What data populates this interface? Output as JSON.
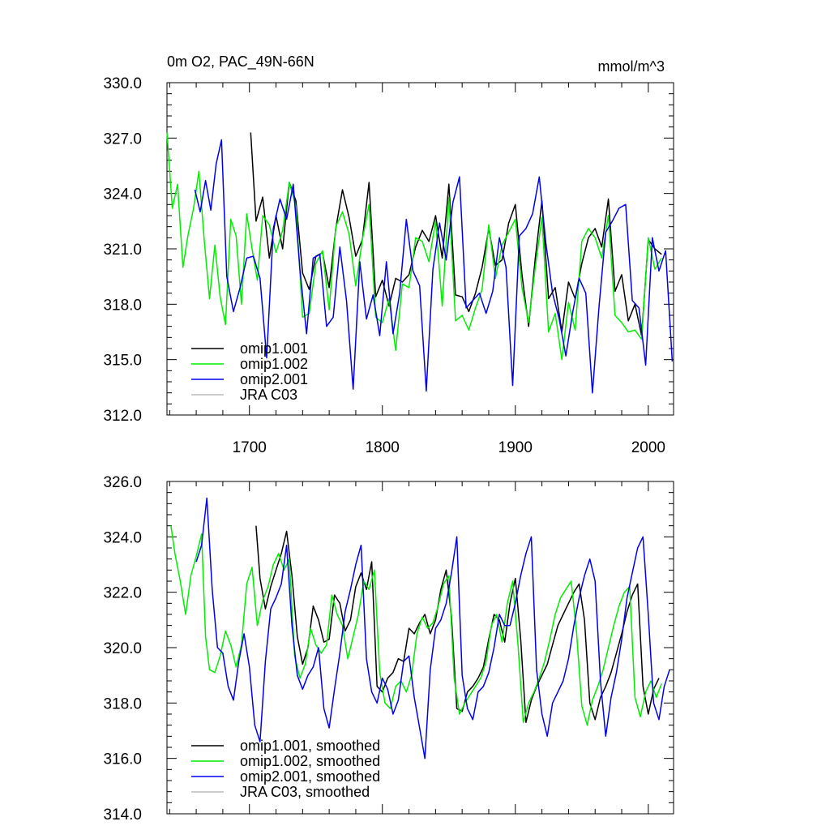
{
  "colors": {
    "omip1_001": "#000000",
    "omip1_002": "#00ee00",
    "omip2_001": "#0000ee",
    "jra_c03": "#bbbbbb"
  },
  "chart_data": [
    {
      "type": "line",
      "title": "0m O2, PAC_49N-66N",
      "units": "mmol/m^3",
      "xlim": [
        1638,
        2019
      ],
      "ylim": [
        312,
        330
      ],
      "x_ticks": [
        "1700",
        "1800",
        "1900",
        "2000"
      ],
      "y_ticks": [
        "312.0",
        "315.0",
        "318.0",
        "321.0",
        "324.0",
        "327.0",
        "330.0"
      ],
      "legend_position": "bottom-left",
      "legend": [
        "omip1.001",
        "omip1.002",
        "omip2.001",
        "JRA C03"
      ],
      "series": [
        {
          "name": "omip1.001",
          "color_key": "omip1_001",
          "x": [
            1701,
            1705,
            1710,
            1715,
            1720,
            1725,
            1730,
            1735,
            1740,
            1745,
            1750,
            1755,
            1760,
            1765,
            1770,
            1775,
            1780,
            1785,
            1790,
            1795,
            1800,
            1805,
            1810,
            1815,
            1820,
            1825,
            1830,
            1835,
            1840,
            1845,
            1850,
            1855,
            1860,
            1865,
            1870,
            1875,
            1880,
            1885,
            1890,
            1895,
            1900,
            1905,
            1910,
            1915,
            1920,
            1925,
            1930,
            1935,
            1940,
            1945,
            1950,
            1955,
            1960,
            1965,
            1970,
            1975,
            1980,
            1985,
            1990,
            1995,
            2000,
            2005,
            2010
          ],
          "y": [
            327.3,
            322.5,
            323.8,
            320.5,
            322.8,
            321.0,
            324.6,
            323.6,
            319.7,
            318.8,
            320.6,
            320.8,
            318.9,
            322.1,
            324.2,
            322.7,
            320.6,
            321.5,
            324.6,
            318.4,
            319.3,
            317.9,
            319.4,
            319.2,
            319.6,
            321.1,
            322.0,
            321.4,
            322.8,
            320.5,
            324.5,
            318.5,
            318.4,
            317.6,
            318.6,
            320.0,
            322.1,
            320.1,
            320.4,
            322.4,
            323.4,
            319.6,
            316.8,
            320.5,
            323.6,
            318.3,
            318.9,
            316.5,
            319.2,
            318.3,
            320.2,
            321.6,
            322.1,
            321.1,
            323.7,
            318.7,
            319.6,
            317.1,
            318.0,
            316.3,
            321.5,
            321.0,
            320.7
          ]
        },
        {
          "name": "omip1.002",
          "color_key": "omip1_002",
          "x": [
            1638,
            1642,
            1646,
            1650,
            1654,
            1658,
            1662,
            1666,
            1670,
            1674,
            1678,
            1682,
            1686,
            1690,
            1694,
            1698,
            1702,
            1706,
            1710,
            1715,
            1720,
            1725,
            1730,
            1735,
            1740,
            1745,
            1750,
            1755,
            1760,
            1765,
            1770,
            1775,
            1780,
            1785,
            1790,
            1795,
            1800,
            1805,
            1810,
            1815,
            1820,
            1825,
            1830,
            1835,
            1840,
            1845,
            1850,
            1855,
            1860,
            1865,
            1870,
            1875,
            1880,
            1885,
            1890,
            1895,
            1900,
            1905,
            1910,
            1915,
            1920,
            1925,
            1930,
            1935,
            1940,
            1945,
            1950,
            1955,
            1960,
            1965,
            1970,
            1975,
            1980,
            1985,
            1990,
            1995,
            2000,
            2005,
            2010
          ],
          "y": [
            327.3,
            323.2,
            324.5,
            320.0,
            321.8,
            323.2,
            325.2,
            321.5,
            318.3,
            321.2,
            318.4,
            316.9,
            322.6,
            321.7,
            318.0,
            322.9,
            321.0,
            319.3,
            322.8,
            322.3,
            320.8,
            322.0,
            324.6,
            323.3,
            317.3,
            317.5,
            320.2,
            320.9,
            317.7,
            322.2,
            323.0,
            321.8,
            319.0,
            321.5,
            323.4,
            317.3,
            317.0,
            318.3,
            315.5,
            319.1,
            318.9,
            321.6,
            321.4,
            320.3,
            322.5,
            317.9,
            323.8,
            317.1,
            317.4,
            316.6,
            317.8,
            318.8,
            322.3,
            319.4,
            321.2,
            321.9,
            322.6,
            318.9,
            317.0,
            320.0,
            322.7,
            316.5,
            317.5,
            315.0,
            318.1,
            316.6,
            321.4,
            322.1,
            321.6,
            320.5,
            322.8,
            317.4,
            317.0,
            316.5,
            316.6,
            316.1,
            321.6,
            319.9,
            320.5
          ]
        },
        {
          "name": "omip2.001",
          "color_key": "omip2_001",
          "x": [
            1659,
            1663,
            1667,
            1671,
            1675,
            1679,
            1683,
            1688,
            1693,
            1698,
            1703,
            1708,
            1713,
            1718,
            1723,
            1728,
            1733,
            1738,
            1743,
            1748,
            1753,
            1758,
            1763,
            1768,
            1773,
            1778,
            1783,
            1788,
            1793,
            1798,
            1803,
            1808,
            1813,
            1818,
            1823,
            1828,
            1833,
            1838,
            1843,
            1848,
            1853,
            1858,
            1863,
            1868,
            1873,
            1878,
            1883,
            1888,
            1893,
            1898,
            1903,
            1908,
            1913,
            1918,
            1923,
            1928,
            1933,
            1938,
            1943,
            1948,
            1953,
            1958,
            1963,
            1968,
            1973,
            1978,
            1983,
            1988,
            1993,
            1998,
            2003,
            2008,
            2013,
            2018
          ],
          "y": [
            324.2,
            323.0,
            324.7,
            323.1,
            325.6,
            326.9,
            319.5,
            317.6,
            318.9,
            320.5,
            320.6,
            319.4,
            315.1,
            322.1,
            323.7,
            322.6,
            324.5,
            319.9,
            316.4,
            320.5,
            320.7,
            316.8,
            317.3,
            321.1,
            318.2,
            313.4,
            320.3,
            317.2,
            318.5,
            316.3,
            320.3,
            316.4,
            318.6,
            322.6,
            319.8,
            319.0,
            313.3,
            319.9,
            322.4,
            320.4,
            323.5,
            324.9,
            317.8,
            318.2,
            318.6,
            317.5,
            318.7,
            321.6,
            320.0,
            313.6,
            321.7,
            322.1,
            322.9,
            324.9,
            321.3,
            318.6,
            317.2,
            315.2,
            317.5,
            319.4,
            318.6,
            313.2,
            317.9,
            321.9,
            322.5,
            323.2,
            323.4,
            318.2,
            317.8,
            314.7,
            321.6,
            319.8,
            320.9,
            314.9
          ]
        }
      ]
    },
    {
      "type": "line",
      "xlim": [
        1638,
        2019
      ],
      "ylim": [
        314,
        326
      ],
      "y_ticks": [
        "314.0",
        "316.0",
        "318.0",
        "320.0",
        "322.0",
        "324.0",
        "326.0"
      ],
      "legend_position": "bottom-left",
      "legend": [
        "omip1.001, smoothed",
        "omip1.002, smoothed",
        "omip2.001, smoothed",
        "JRA C03, smoothed"
      ],
      "series": [
        {
          "name": "omip1.001, smoothed",
          "color_key": "omip1_001",
          "x": [
            1705,
            1708,
            1712,
            1716,
            1720,
            1724,
            1728,
            1732,
            1736,
            1740,
            1744,
            1748,
            1752,
            1756,
            1760,
            1764,
            1768,
            1772,
            1776,
            1780,
            1784,
            1788,
            1792,
            1796,
            1800,
            1804,
            1808,
            1812,
            1816,
            1820,
            1824,
            1828,
            1832,
            1836,
            1840,
            1844,
            1848,
            1852,
            1856,
            1860,
            1864,
            1868,
            1872,
            1876,
            1880,
            1884,
            1888,
            1892,
            1896,
            1900,
            1904,
            1908,
            1912,
            1916,
            1920,
            1924,
            1928,
            1932,
            1936,
            1940,
            1944,
            1948,
            1952,
            1956,
            1960,
            1964,
            1968,
            1972,
            1976,
            1980,
            1984,
            1988,
            1992,
            1996,
            2000,
            2004,
            2008
          ],
          "y": [
            324.4,
            322.5,
            321.4,
            322.2,
            322.8,
            323.4,
            324.2,
            322.6,
            320.4,
            319.4,
            320.0,
            321.5,
            321.0,
            320.2,
            320.3,
            321.9,
            321.6,
            320.6,
            321.0,
            322.2,
            322.7,
            322.1,
            323.1,
            318.6,
            318.4,
            318.9,
            319.1,
            319.6,
            319.5,
            320.7,
            320.5,
            320.9,
            321.2,
            320.5,
            321.0,
            322.1,
            322.8,
            321.1,
            317.8,
            317.7,
            318.4,
            318.6,
            318.9,
            319.3,
            320.3,
            321.2,
            321.0,
            320.2,
            321.6,
            322.5,
            320.3,
            317.3,
            318.1,
            318.6,
            319.0,
            319.4,
            320.1,
            320.8,
            321.2,
            321.6,
            322.0,
            322.3,
            321.0,
            318.0,
            317.4,
            318.2,
            318.6,
            319.1,
            319.8,
            320.5,
            321.3,
            321.9,
            322.3,
            318.6,
            317.6,
            318.5,
            318.9
          ]
        },
        {
          "name": "omip1.002, smoothed",
          "color_key": "omip1_002",
          "x": [
            1641,
            1644,
            1648,
            1652,
            1656,
            1660,
            1664,
            1667,
            1670,
            1674,
            1678,
            1682,
            1686,
            1690,
            1694,
            1698,
            1702,
            1706,
            1710,
            1714,
            1718,
            1722,
            1726,
            1730,
            1734,
            1738,
            1742,
            1746,
            1750,
            1754,
            1758,
            1762,
            1766,
            1770,
            1774,
            1778,
            1782,
            1786,
            1790,
            1794,
            1798,
            1802,
            1806,
            1810,
            1814,
            1818,
            1822,
            1826,
            1830,
            1834,
            1838,
            1842,
            1846,
            1850,
            1854,
            1858,
            1862,
            1866,
            1870,
            1874,
            1878,
            1882,
            1886,
            1890,
            1894,
            1898,
            1902,
            1906,
            1910,
            1914,
            1918,
            1922,
            1926,
            1930,
            1934,
            1938,
            1942,
            1946,
            1950,
            1954,
            1958,
            1962,
            1966,
            1970,
            1974,
            1978,
            1982,
            1986,
            1990,
            1994,
            1998,
            2002,
            2006,
            2010
          ],
          "y": [
            324.4,
            323.4,
            322.4,
            321.2,
            322.6,
            323.3,
            324.1,
            320.4,
            319.2,
            319.1,
            319.7,
            320.6,
            320.1,
            319.3,
            320.1,
            322.3,
            322.9,
            320.8,
            321.7,
            322.2,
            323.0,
            323.4,
            322.8,
            323.2,
            319.7,
            318.9,
            319.4,
            320.7,
            320.1,
            319.8,
            320.1,
            321.9,
            321.2,
            320.8,
            319.6,
            320.4,
            321.2,
            322.4,
            322.1,
            322.8,
            319.1,
            318.0,
            317.8,
            318.6,
            318.8,
            318.4,
            319.0,
            320.5,
            321.1,
            320.7,
            320.9,
            321.5,
            322.3,
            322.6,
            318.9,
            317.6,
            318.0,
            318.3,
            318.6,
            318.9,
            319.5,
            320.8,
            321.2,
            320.2,
            321.6,
            322.4,
            320.1,
            317.3,
            318.0,
            318.4,
            318.9,
            319.5,
            320.3,
            321.2,
            321.8,
            322.1,
            322.4,
            320.6,
            317.9,
            317.2,
            318.1,
            318.6,
            319.2,
            320.0,
            320.8,
            321.5,
            322.0,
            322.2,
            318.2,
            317.5,
            318.4,
            318.8,
            318.2,
            318.7
          ]
        },
        {
          "name": "omip2.001, smoothed",
          "color_key": "omip2_001",
          "x": [
            1660,
            1664,
            1668,
            1672,
            1676,
            1680,
            1684,
            1688,
            1692,
            1696,
            1700,
            1704,
            1708,
            1712,
            1716,
            1720,
            1724,
            1728,
            1732,
            1736,
            1740,
            1744,
            1748,
            1752,
            1756,
            1760,
            1764,
            1768,
            1772,
            1776,
            1780,
            1784,
            1788,
            1792,
            1796,
            1800,
            1804,
            1808,
            1812,
            1816,
            1820,
            1824,
            1828,
            1832,
            1836,
            1840,
            1844,
            1848,
            1852,
            1856,
            1860,
            1864,
            1868,
            1872,
            1876,
            1880,
            1884,
            1888,
            1892,
            1896,
            1900,
            1904,
            1908,
            1912,
            1916,
            1920,
            1924,
            1928,
            1932,
            1936,
            1940,
            1944,
            1948,
            1952,
            1956,
            1960,
            1964,
            1968,
            1972,
            1976,
            1980,
            1984,
            1988,
            1992,
            1996,
            2000,
            2004,
            2008,
            2012,
            2016
          ],
          "y": [
            323.1,
            323.7,
            325.4,
            322.1,
            320.0,
            319.8,
            318.6,
            318.1,
            319.5,
            320.5,
            319.3,
            317.2,
            316.6,
            319.5,
            321.4,
            321.8,
            322.3,
            323.7,
            320.8,
            319.0,
            318.5,
            319.0,
            319.3,
            320.0,
            317.8,
            317.1,
            318.5,
            319.8,
            321.3,
            322.1,
            323.0,
            323.7,
            319.6,
            318.4,
            318.0,
            318.9,
            318.5,
            317.6,
            318.1,
            319.5,
            319.7,
            318.2,
            317.1,
            316.0,
            319.2,
            320.7,
            321.0,
            321.6,
            322.7,
            324.0,
            319.0,
            317.8,
            317.4,
            318.4,
            318.6,
            319.1,
            320.0,
            321.2,
            320.8,
            320.8,
            321.6,
            322.6,
            323.4,
            324.0,
            319.2,
            317.6,
            316.8,
            318.0,
            318.4,
            318.8,
            319.6,
            320.8,
            321.8,
            322.6,
            323.2,
            322.4,
            318.8,
            316.8,
            318.2,
            319.1,
            320.3,
            321.8,
            322.7,
            323.6,
            324.0,
            321.2,
            318.0,
            317.4,
            318.6,
            319.2
          ]
        }
      ]
    }
  ]
}
